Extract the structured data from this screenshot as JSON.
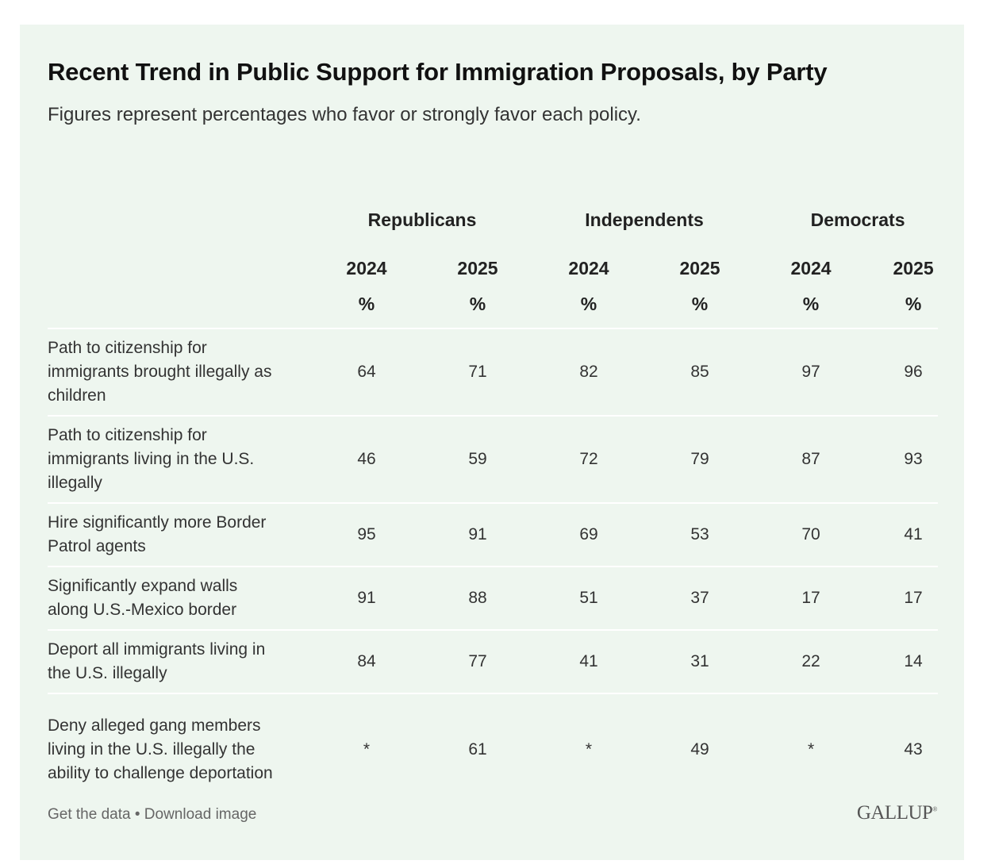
{
  "chart_data": {
    "type": "table",
    "title": "Recent Trend in Public Support for Immigration Proposals, by Party",
    "subtitle": "Figures represent percentages who favor or strongly favor each policy.",
    "groups": [
      "Republicans",
      "Independents",
      "Democrats"
    ],
    "years": [
      "2024",
      "2025",
      "2024",
      "2025",
      "2024",
      "2025"
    ],
    "unit": "%",
    "rows": [
      {
        "label": "Path to citizenship for immigrants brought illegally as children",
        "values": [
          "64",
          "71",
          "82",
          "85",
          "97",
          "96"
        ]
      },
      {
        "label": "Path to citizenship for immigrants living in the U.S. illegally",
        "values": [
          "46",
          "59",
          "72",
          "79",
          "87",
          "93"
        ]
      },
      {
        "label": "Hire significantly more Border Patrol agents",
        "values": [
          "95",
          "91",
          "69",
          "53",
          "70",
          "41"
        ]
      },
      {
        "label": "Significantly expand walls along U.S.-Mexico border",
        "values": [
          "91",
          "88",
          "51",
          "37",
          "17",
          "17"
        ]
      },
      {
        "label": "Deport all immigrants living in the U.S. illegally",
        "values": [
          "84",
          "77",
          "41",
          "31",
          "22",
          "14"
        ]
      },
      {
        "label": "Deny alleged gang members living in the U.S. illegally the ability to challenge deportation",
        "values": [
          "*",
          "61",
          "*",
          "49",
          "*",
          "43"
        ]
      }
    ]
  },
  "footer": {
    "get_data": "Get the data",
    "separator": "•",
    "download": "Download image"
  },
  "logo": "GALLUP",
  "colors": {
    "background": "#eef6ef",
    "separator": "#ffffff"
  }
}
